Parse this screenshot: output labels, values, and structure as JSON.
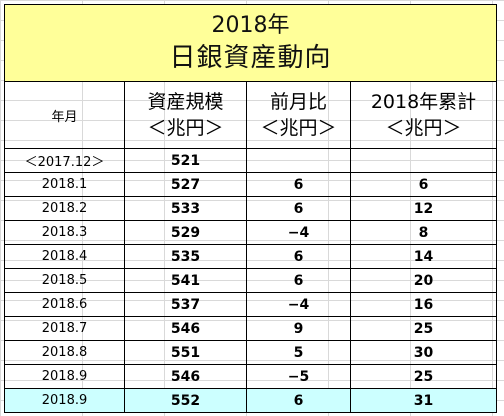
{
  "title": {
    "line1": "2018年",
    "line2": "日銀資産動向"
  },
  "headers": {
    "month": "年月",
    "assets": {
      "line1": "資産規模",
      "line2": "＜兆円＞"
    },
    "mom": {
      "line1": "前月比",
      "line2": "＜兆円＞"
    },
    "ytd": {
      "line1": "2018年累計",
      "line2": "＜兆円＞"
    }
  },
  "rows": [
    {
      "month": "＜2017.12＞",
      "assets": "521",
      "mom": "",
      "ytd": ""
    },
    {
      "month": "2018.1",
      "assets": "527",
      "mom": "6",
      "ytd": "6"
    },
    {
      "month": "2018.2",
      "assets": "533",
      "mom": "6",
      "ytd": "12"
    },
    {
      "month": "2018.3",
      "assets": "529",
      "mom": "−4",
      "ytd": "8"
    },
    {
      "month": "2018.4",
      "assets": "535",
      "mom": "6",
      "ytd": "14"
    },
    {
      "month": "2018.5",
      "assets": "541",
      "mom": "6",
      "ytd": "20"
    },
    {
      "month": "2018.6",
      "assets": "537",
      "mom": "−4",
      "ytd": "16"
    },
    {
      "month": "2018.7",
      "assets": "546",
      "mom": "9",
      "ytd": "25"
    },
    {
      "month": "2018.8",
      "assets": "551",
      "mom": "5",
      "ytd": "30"
    },
    {
      "month": "2018.9",
      "assets": "546",
      "mom": "−5",
      "ytd": "25"
    },
    {
      "month": "2018.9",
      "assets": "552",
      "mom": "6",
      "ytd": "31"
    }
  ],
  "colors": {
    "title_bg": "#ffff99",
    "highlight_bg": "#ccffff",
    "border": "#000000"
  }
}
